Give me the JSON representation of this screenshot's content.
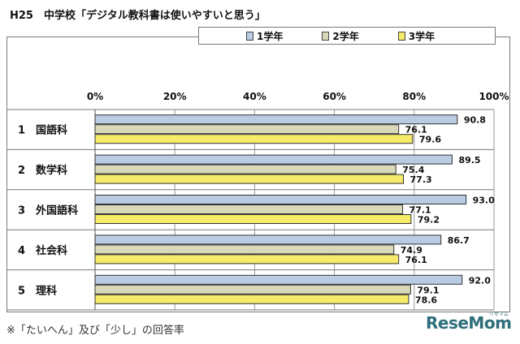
{
  "chart_data": {
    "type": "bar",
    "orientation": "horizontal",
    "title": "H25　中学校「デジタル教科書は使いやすいと思う」",
    "categories": [
      "1　国語科",
      "2　数学科",
      "3　外国語科",
      "4　社会科",
      "5　理科"
    ],
    "series": [
      {
        "name": "1学年",
        "color": "#b8cce4",
        "values": [
          90.8,
          89.5,
          93.0,
          86.7,
          92.0
        ]
      },
      {
        "name": "2学年",
        "color": "#d9d8b8",
        "values": [
          76.1,
          75.4,
          77.1,
          74.9,
          79.1
        ]
      },
      {
        "name": "3学年",
        "color": "#f5ea69",
        "values": [
          79.6,
          77.3,
          79.2,
          76.1,
          78.6
        ]
      }
    ],
    "xlim": [
      0,
      100
    ],
    "x_ticks": [
      "0%",
      "20%",
      "40%",
      "60%",
      "80%",
      "100%"
    ],
    "legend_position": "top",
    "grid": true
  },
  "footnote": "※「たいへん」及び「少し」の回答率",
  "logo_text": "ReseMom",
  "logo_sup": "リセマム"
}
